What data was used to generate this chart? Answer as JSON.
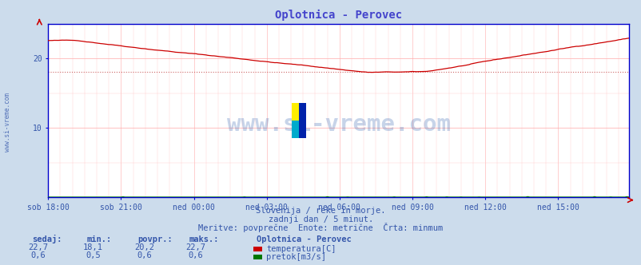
{
  "title": "Oplotnica - Perovec",
  "title_color": "#4444cc",
  "bg_color": "#ccdcec",
  "plot_bg_color": "#ffffff",
  "grid_color_major": "#ffaaaa",
  "grid_color_minor": "#ffcccc",
  "spine_color": "#0000cc",
  "x_labels": [
    "sob 18:00",
    "sob 21:00",
    "ned 00:00",
    "ned 03:00",
    "ned 06:00",
    "ned 09:00",
    "ned 12:00",
    "ned 15:00"
  ],
  "x_ticks_pos": [
    0,
    36,
    72,
    108,
    144,
    180,
    216,
    252
  ],
  "total_points": 288,
  "ylim": [
    0,
    25
  ],
  "yticks": [
    10,
    20
  ],
  "temp_color": "#cc0000",
  "flow_color": "#007700",
  "min_line_color": "#cc6666",
  "min_line_y": 18.1,
  "watermark_text": "www.si-vreme.com",
  "watermark_color": "#2255aa",
  "watermark_alpha": 0.25,
  "left_label": "www.si-vreme.com",
  "subtitle1": "Slovenija / reke in morje.",
  "subtitle2": "zadnji dan / 5 minut.",
  "subtitle3": "Meritve: povprečne  Enote: metrične  Črta: minmum",
  "info_color": "#3355aa",
  "legend_title": "Oplotnica - Perovec",
  "legend_entries": [
    "temperatura[C]",
    "pretok[m3/s]"
  ],
  "legend_colors": [
    "#cc0000",
    "#007700"
  ],
  "table_headers": [
    "sedaj:",
    "min.:",
    "povpr.:",
    "maks.:"
  ],
  "table_row1": [
    "22,7",
    "18,1",
    "20,2",
    "22,7"
  ],
  "table_row2": [
    "0,6",
    "0,5",
    "0,6",
    "0,6"
  ],
  "axis_arrow_color": "#cc0000",
  "tick_color": "#3355aa"
}
